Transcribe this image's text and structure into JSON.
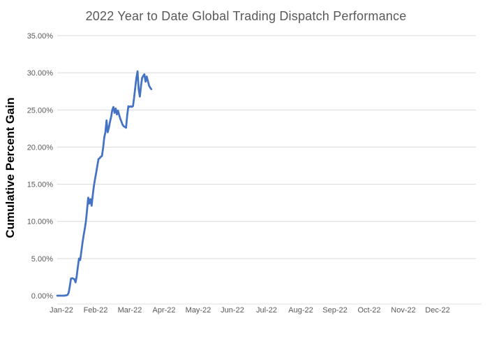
{
  "chart": {
    "title": "2022 Year to Date Global Trading Dispatch Performance",
    "y_axis_title": "Cumulative Percent Gain"
  },
  "colors": {
    "background": "#FFFFFF",
    "line": "#4472C4",
    "gridline": "#D9D9D9",
    "axis_line": "#E0E0E0",
    "tick_label": "#595959",
    "title_text": "#595959",
    "y_axis_title_text": "#000000"
  },
  "chart_data": {
    "type": "line",
    "title": "2022 Year to Date Global Trading Dispatch Performance",
    "xlabel": "",
    "ylabel": "Cumulative Percent Gain",
    "ylim": [
      0,
      35
    ],
    "grid": true,
    "legend": false,
    "y_tick_values": [
      0,
      5,
      10,
      15,
      20,
      25,
      30,
      35
    ],
    "y_tick_labels": [
      "0.00%",
      "5.00%",
      "10.00%",
      "15.00%",
      "20.00%",
      "25.00%",
      "30.00%",
      "35.00%"
    ],
    "x_tick_labels": [
      "Jan-22",
      "Feb-22",
      "Mar-22",
      "Apr-22",
      "May-22",
      "Jun-22",
      "Jul-22",
      "Aug-22",
      "Sep-22",
      "Oct-22",
      "Nov-22",
      "Dec-22"
    ],
    "x_axis_span_days": 365,
    "series": [
      {
        "name": "Cumulative Percent Gain",
        "color": "#4472C4",
        "x_unit": "day_of_year_2022",
        "y_unit": "percent",
        "points": [
          [
            0,
            0.0
          ],
          [
            2,
            0.0
          ],
          [
            4,
            0.0
          ],
          [
            6,
            0.0
          ],
          [
            8,
            0.05
          ],
          [
            9,
            0.1
          ],
          [
            10,
            0.4
          ],
          [
            11,
            1.3
          ],
          [
            12,
            2.3
          ],
          [
            13,
            2.35
          ],
          [
            14,
            2.3
          ],
          [
            15,
            2.2
          ],
          [
            16,
            1.8
          ],
          [
            17,
            2.6
          ],
          [
            18,
            3.9
          ],
          [
            19,
            5.0
          ],
          [
            20,
            4.8
          ],
          [
            21,
            5.9
          ],
          [
            22,
            7.1
          ],
          [
            23,
            8.1
          ],
          [
            24,
            9.0
          ],
          [
            25,
            10.0
          ],
          [
            26,
            11.5
          ],
          [
            27,
            13.2
          ],
          [
            28,
            12.4
          ],
          [
            29,
            13.0
          ],
          [
            30,
            12.1
          ],
          [
            31,
            13.6
          ],
          [
            32,
            14.8
          ],
          [
            33,
            15.7
          ],
          [
            34,
            16.6
          ],
          [
            35,
            17.5
          ],
          [
            36,
            18.4
          ],
          [
            37,
            18.5
          ],
          [
            38,
            18.7
          ],
          [
            39,
            18.8
          ],
          [
            40,
            19.9
          ],
          [
            41,
            21.3
          ],
          [
            42,
            22.0
          ],
          [
            43,
            23.6
          ],
          [
            44,
            22.0
          ],
          [
            45,
            22.6
          ],
          [
            46,
            23.4
          ],
          [
            47,
            24.1
          ],
          [
            48,
            25.0
          ],
          [
            49,
            25.4
          ],
          [
            50,
            24.6
          ],
          [
            51,
            25.2
          ],
          [
            52,
            24.4
          ],
          [
            53,
            24.9
          ],
          [
            54,
            24.3
          ],
          [
            55,
            23.8
          ],
          [
            56,
            23.4
          ],
          [
            57,
            23.0
          ],
          [
            58,
            22.8
          ],
          [
            59,
            22.7
          ],
          [
            60,
            22.6
          ],
          [
            61,
            24.3
          ],
          [
            62,
            25.5
          ],
          [
            63,
            25.4
          ],
          [
            64,
            25.5
          ],
          [
            65,
            25.4
          ],
          [
            66,
            25.5
          ],
          [
            67,
            26.6
          ],
          [
            68,
            28.0
          ],
          [
            69,
            29.3
          ],
          [
            70,
            30.2
          ],
          [
            71,
            27.8
          ],
          [
            72,
            26.8
          ],
          [
            73,
            28.2
          ],
          [
            74,
            29.3
          ],
          [
            75,
            29.6
          ],
          [
            76,
            29.8
          ],
          [
            77,
            28.8
          ],
          [
            78,
            29.5
          ],
          [
            79,
            28.9
          ],
          [
            80,
            28.3
          ],
          [
            81,
            28.0
          ],
          [
            82,
            27.8
          ]
        ]
      }
    ]
  }
}
